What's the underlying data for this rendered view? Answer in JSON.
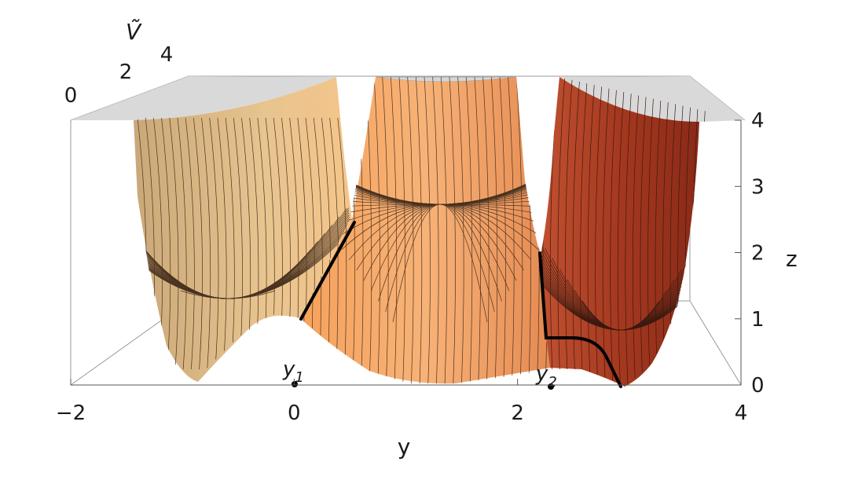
{
  "chart_data": {
    "type": "surface3d",
    "description_axes": {
      "x": {
        "label": "y",
        "range": [
          -2,
          4
        ],
        "ticks": [
          "−2",
          "0",
          "2",
          "4"
        ]
      },
      "z": {
        "label": "z",
        "range": [
          0,
          4
        ],
        "ticks": [
          "0",
          "1",
          "2",
          "3",
          "4"
        ]
      },
      "depth": {
        "label": "Ṽ",
        "ticks": [
          "0",
          "2",
          "4"
        ]
      }
    },
    "markers": [
      {
        "label": "y1",
        "main": "y",
        "sub": "1",
        "y": 0
      },
      {
        "label": "y2",
        "main": "y",
        "sub": "2",
        "y": 2.35
      }
    ],
    "front_profile": [
      {
        "y": -1.2,
        "z": 0.0
      },
      {
        "y": -0.8,
        "z": 0.2
      },
      {
        "y": -0.4,
        "z": 0.6
      },
      {
        "y": 0.0,
        "z": 1.05
      },
      {
        "y": 0.5,
        "z": 0.75
      },
      {
        "y": 1.0,
        "z": 0.15
      },
      {
        "y": 1.5,
        "z": 0.05
      },
      {
        "y": 2.0,
        "z": 0.3
      },
      {
        "y": 2.35,
        "z": 0.28
      },
      {
        "y": 2.7,
        "z": 0.1
      },
      {
        "y": 3.0,
        "z": 0.0
      }
    ],
    "highlight_curves": [
      {
        "name": "",
        "points": [
          {
            "y": 0.0,
            "z": 1.05
          },
          {
            "y": 0.4,
            "z": 2.5
          }
        ]
      },
      {
        "name": "",
        "points": [
          {
            "y": 2.2,
            "z": 2.0
          },
          {
            "y": 2.25,
            "z": 0.75
          },
          {
            "y": 2.7,
            "z": 0.7
          },
          {
            "y": 3.0,
            "z": 0.0
          }
        ]
      }
    ],
    "colors": {
      "surface_light": "#f2d8a2",
      "surface_mid": "#f0a062",
      "surface_dark": "#8e2a19",
      "cap": "#d9d9d9",
      "mesh": "#3a2616"
    }
  }
}
